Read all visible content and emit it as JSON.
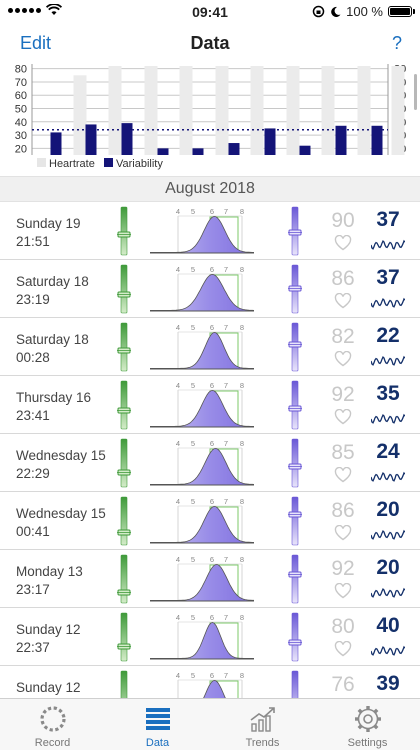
{
  "status": {
    "time": "09:41",
    "battery": "100 %"
  },
  "nav": {
    "edit": "Edit",
    "title": "Data",
    "help": "?"
  },
  "chart_data": {
    "type": "bar",
    "y_ticks": [
      20,
      30,
      40,
      50,
      60,
      70,
      80
    ],
    "ylim": [
      15,
      82
    ],
    "heartrate": [
      null,
      75,
      82,
      82,
      82,
      82,
      82,
      82,
      82,
      82,
      82
    ],
    "variability": [
      32,
      38,
      39,
      20,
      20,
      24,
      35,
      22,
      37,
      37
    ],
    "average_line": 34,
    "legend": [
      "Heartrate",
      "Variability"
    ],
    "colors": {
      "heartrate": "#ebebeb",
      "variability": "#141478",
      "grid": "#c8c8c8"
    }
  },
  "section": {
    "title": "August 2018"
  },
  "dist_ticks": [
    "4",
    "5",
    "6",
    "7",
    "8"
  ],
  "rows": [
    {
      "day": "Sunday 19",
      "time": "21:51",
      "hr": "90",
      "hrv": "37",
      "peak": 0.62,
      "spread": 0.1,
      "g": 0.45,
      "p": 0.5
    },
    {
      "day": "Saturday 18",
      "time": "23:19",
      "hr": "86",
      "hrv": "37",
      "peak": 0.6,
      "spread": 0.11,
      "g": 0.4,
      "p": 0.55
    },
    {
      "day": "Saturday 18",
      "time": "00:28",
      "hr": "82",
      "hrv": "22",
      "peak": 0.62,
      "spread": 0.09,
      "g": 0.45,
      "p": 0.6
    },
    {
      "day": "Thursday 16",
      "time": "23:41",
      "hr": "92",
      "hrv": "35",
      "peak": 0.6,
      "spread": 0.1,
      "g": 0.4,
      "p": 0.45
    },
    {
      "day": "Wednesday 15",
      "time": "22:29",
      "hr": "85",
      "hrv": "24",
      "peak": 0.63,
      "spread": 0.1,
      "g": 0.3,
      "p": 0.45
    },
    {
      "day": "Wednesday 15",
      "time": "00:41",
      "hr": "86",
      "hrv": "20",
      "peak": 0.62,
      "spread": 0.1,
      "g": 0.25,
      "p": 0.7
    },
    {
      "day": "Monday 13",
      "time": "23:17",
      "hr": "92",
      "hrv": "20",
      "peak": 0.64,
      "spread": 0.1,
      "g": 0.2,
      "p": 0.65
    },
    {
      "day": "Sunday 12",
      "time": "22:37",
      "hr": "80",
      "hrv": "40",
      "peak": 0.6,
      "spread": 0.08,
      "g": 0.3,
      "p": 0.4
    },
    {
      "day": "Sunday 12",
      "time": "",
      "hr": "76",
      "hrv": "39",
      "peak": 0.62,
      "spread": 0.09,
      "g": 0.2,
      "p": 0.3
    }
  ],
  "tabs": [
    {
      "label": "Record",
      "icon": "record-icon",
      "active": false
    },
    {
      "label": "Data",
      "icon": "data-icon",
      "active": true
    },
    {
      "label": "Trends",
      "icon": "trends-icon",
      "active": false
    },
    {
      "label": "Settings",
      "icon": "settings-icon",
      "active": false
    }
  ]
}
